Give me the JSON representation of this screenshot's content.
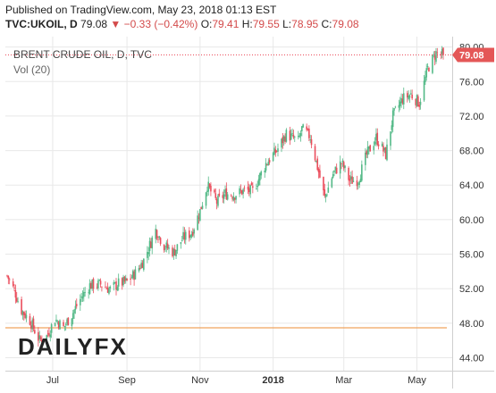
{
  "header": {
    "published": "Published on TradingView.com, May 23, 2018 01:13 EST",
    "symbol": "TVC:UKOIL, D",
    "last": "79.08",
    "change_arrow": "▼",
    "change": "−0.33 (−0.42%)",
    "open_label": "O:",
    "open": "79.41",
    "high_label": "H:",
    "high": "79.55",
    "low_label": "L:",
    "low": "78.95",
    "close_label": "C:",
    "close": "79.08"
  },
  "legend": {
    "title": "BRENT CRUDE OIL, D, TVC",
    "volume": "Vol (20)"
  },
  "logo": {
    "text": "DAILYFX"
  },
  "price_tag": {
    "value": "79.08",
    "color": "#e45757"
  },
  "colors": {
    "up": "#53b987",
    "down": "#eb4d5c",
    "grid": "#e8e8e8",
    "volume_line": "#f0a35e",
    "last_price_line": "#eb4d5c"
  },
  "chart_data": {
    "type": "candlestick",
    "title": "BRENT CRUDE OIL, D, TVC",
    "x_ticks": [
      "Jul",
      "Sep",
      "Nov",
      "2018",
      "Mar",
      "May"
    ],
    "y_ticks": [
      "44.00",
      "48.00",
      "52.00",
      "56.00",
      "60.00",
      "64.00",
      "68.00",
      "72.00",
      "76.00",
      "80.00"
    ],
    "ylim": [
      42.5,
      81.2
    ],
    "grid": true,
    "last_value": 79.08,
    "anchors": [
      [
        "2017-05-24",
        53.5
      ],
      [
        "2017-05-30",
        51.8
      ],
      [
        "2017-06-05",
        49.5
      ],
      [
        "2017-06-12",
        48.3
      ],
      [
        "2017-06-20",
        46.0
      ],
      [
        "2017-06-26",
        46.5
      ],
      [
        "2017-07-03",
        48.5
      ],
      [
        "2017-07-10",
        47.5
      ],
      [
        "2017-07-17",
        49.0
      ],
      [
        "2017-07-24",
        50.8
      ],
      [
        "2017-08-01",
        52.4
      ],
      [
        "2017-08-10",
        52.5
      ],
      [
        "2017-08-18",
        51.9
      ],
      [
        "2017-08-25",
        52.6
      ],
      [
        "2017-09-01",
        52.8
      ],
      [
        "2017-09-08",
        53.8
      ],
      [
        "2017-09-15",
        55.3
      ],
      [
        "2017-09-25",
        58.8
      ],
      [
        "2017-10-02",
        57.0
      ],
      [
        "2017-10-10",
        56.2
      ],
      [
        "2017-10-18",
        57.9
      ],
      [
        "2017-10-25",
        58.5
      ],
      [
        "2017-11-01",
        61.0
      ],
      [
        "2017-11-07",
        64.0
      ],
      [
        "2017-11-15",
        62.0
      ],
      [
        "2017-11-22",
        63.0
      ],
      [
        "2017-11-30",
        62.9
      ],
      [
        "2017-12-08",
        63.4
      ],
      [
        "2017-12-15",
        63.3
      ],
      [
        "2017-12-26",
        66.5
      ],
      [
        "2018-01-04",
        68.0
      ],
      [
        "2018-01-12",
        69.9
      ],
      [
        "2018-01-22",
        69.1
      ],
      [
        "2018-01-25",
        70.5
      ],
      [
        "2018-02-01",
        69.6
      ],
      [
        "2018-02-08",
        65.5
      ],
      [
        "2018-02-13",
        62.5
      ],
      [
        "2018-02-20",
        65.3
      ],
      [
        "2018-02-27",
        66.6
      ],
      [
        "2018-03-06",
        64.5
      ],
      [
        "2018-03-13",
        64.6
      ],
      [
        "2018-03-20",
        67.5
      ],
      [
        "2018-03-28",
        69.5
      ],
      [
        "2018-04-05",
        67.5
      ],
      [
        "2018-04-11",
        72.0
      ],
      [
        "2018-04-19",
        74.0
      ],
      [
        "2018-04-26",
        74.5
      ],
      [
        "2018-05-03",
        73.5
      ],
      [
        "2018-05-10",
        77.5
      ],
      [
        "2018-05-17",
        79.3
      ],
      [
        "2018-05-23",
        79.08
      ]
    ]
  }
}
